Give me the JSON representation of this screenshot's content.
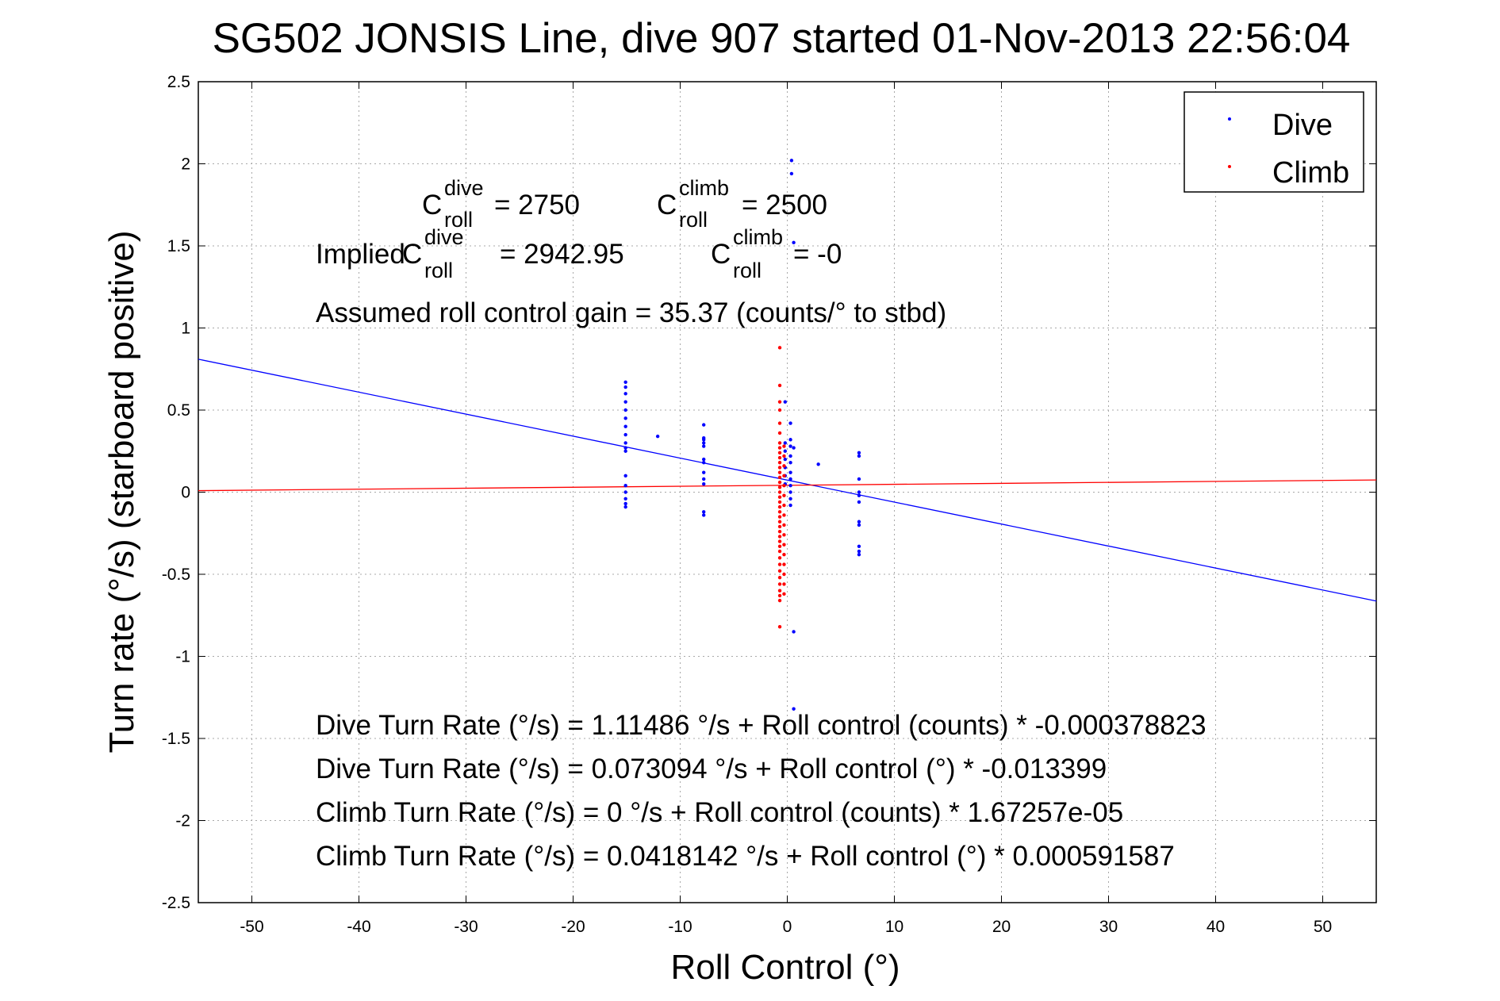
{
  "chart_data": {
    "type": "scatter",
    "title": "SG502 JONSIS Line, dive 907 started 01-Nov-2013 22:56:04",
    "xlabel": "Roll Control (°)",
    "ylabel": "Turn rate (°/s)  (starboard positive)",
    "xlim": [
      -55,
      55
    ],
    "ylim": [
      -2.5,
      2.5
    ],
    "xticks": [
      -50,
      -40,
      -30,
      -20,
      -10,
      0,
      10,
      20,
      30,
      40,
      50
    ],
    "yticks": [
      2.5,
      2,
      1.5,
      1,
      0.5,
      0,
      -0.5,
      -1,
      -1.5,
      -2,
      -2.5
    ],
    "xtick_labels": [
      "-50",
      "-40",
      "-30",
      "-20",
      "-10",
      "0",
      "10",
      "20",
      "30",
      "40",
      "50"
    ],
    "ytick_labels": [
      "2.5",
      "2",
      "1.5",
      "1",
      "0.5",
      "0",
      "-0.5",
      "-1",
      "-1.5",
      "-2",
      "-2.5"
    ],
    "grid": true,
    "legend_position": "top-right",
    "series": [
      {
        "name": "Dive",
        "color": "#0000ff",
        "points": [
          [
            -15.1,
            0.67
          ],
          [
            -15.1,
            0.64
          ],
          [
            -15.1,
            0.6
          ],
          [
            -15.1,
            0.55
          ],
          [
            -15.1,
            0.5
          ],
          [
            -15.1,
            0.45
          ],
          [
            -15.1,
            0.4
          ],
          [
            -15.1,
            0.35
          ],
          [
            -15.1,
            0.3
          ],
          [
            -15.1,
            0.27
          ],
          [
            -15.1,
            0.25
          ],
          [
            -15.1,
            0.1
          ],
          [
            -15.1,
            0.04
          ],
          [
            -15.1,
            0.0
          ],
          [
            -15.1,
            -0.04
          ],
          [
            -15.1,
            -0.07
          ],
          [
            -15.1,
            -0.09
          ],
          [
            -12.1,
            0.34
          ],
          [
            -7.8,
            0.41
          ],
          [
            -7.8,
            0.33
          ],
          [
            -7.8,
            0.32
          ],
          [
            -7.8,
            0.3
          ],
          [
            -7.8,
            0.28
          ],
          [
            -7.8,
            0.2
          ],
          [
            -7.8,
            0.18
          ],
          [
            -7.8,
            0.12
          ],
          [
            -7.8,
            0.08
          ],
          [
            -7.8,
            0.05
          ],
          [
            -7.8,
            -0.12
          ],
          [
            -7.8,
            -0.14
          ],
          [
            -0.2,
            0.55
          ],
          [
            -0.2,
            0.3
          ],
          [
            -0.2,
            0.25
          ],
          [
            -0.2,
            0.2
          ],
          [
            -0.2,
            0.15
          ],
          [
            -0.2,
            0.1
          ],
          [
            -0.2,
            0.05
          ],
          [
            0.3,
            0.42
          ],
          [
            0.3,
            0.32
          ],
          [
            0.3,
            0.28
          ],
          [
            0.3,
            0.22
          ],
          [
            0.3,
            0.18
          ],
          [
            0.3,
            0.12
          ],
          [
            0.3,
            0.08
          ],
          [
            0.3,
            0.04
          ],
          [
            0.3,
            0.0
          ],
          [
            0.3,
            -0.04
          ],
          [
            0.3,
            -0.08
          ],
          [
            0.4,
            2.02
          ],
          [
            0.4,
            1.94
          ],
          [
            0.6,
            1.52
          ],
          [
            0.6,
            0.27
          ],
          [
            0.6,
            -0.85
          ],
          [
            0.6,
            -1.32
          ],
          [
            2.9,
            0.17
          ],
          [
            6.7,
            0.24
          ],
          [
            6.7,
            0.22
          ],
          [
            6.7,
            0.08
          ],
          [
            6.7,
            0.0
          ],
          [
            6.7,
            -0.02
          ],
          [
            6.7,
            -0.06
          ],
          [
            6.7,
            -0.18
          ],
          [
            6.7,
            -0.2
          ],
          [
            6.7,
            -0.33
          ],
          [
            6.7,
            -0.36
          ],
          [
            6.7,
            -0.38
          ]
        ]
      },
      {
        "name": "Climb",
        "color": "#ff0000",
        "points": [
          [
            -0.7,
            0.88
          ],
          [
            -0.7,
            0.65
          ],
          [
            -0.7,
            0.55
          ],
          [
            -0.7,
            0.5
          ],
          [
            -0.7,
            0.42
          ],
          [
            -0.7,
            0.36
          ],
          [
            -0.7,
            0.3
          ],
          [
            -0.7,
            0.27
          ],
          [
            -0.7,
            0.24
          ],
          [
            -0.7,
            0.21
          ],
          [
            -0.7,
            0.18
          ],
          [
            -0.7,
            0.15
          ],
          [
            -0.7,
            0.12
          ],
          [
            -0.7,
            0.09
          ],
          [
            -0.7,
            0.06
          ],
          [
            -0.7,
            0.03
          ],
          [
            -0.7,
            0.0
          ],
          [
            -0.7,
            -0.03
          ],
          [
            -0.7,
            -0.06
          ],
          [
            -0.7,
            -0.09
          ],
          [
            -0.7,
            -0.12
          ],
          [
            -0.7,
            -0.15
          ],
          [
            -0.7,
            -0.18
          ],
          [
            -0.7,
            -0.21
          ],
          [
            -0.7,
            -0.24
          ],
          [
            -0.7,
            -0.27
          ],
          [
            -0.7,
            -0.3
          ],
          [
            -0.7,
            -0.33
          ],
          [
            -0.7,
            -0.36
          ],
          [
            -0.7,
            -0.4
          ],
          [
            -0.7,
            -0.44
          ],
          [
            -0.7,
            -0.48
          ],
          [
            -0.7,
            -0.52
          ],
          [
            -0.7,
            -0.56
          ],
          [
            -0.7,
            -0.6
          ],
          [
            -0.7,
            -0.63
          ],
          [
            -0.7,
            -0.66
          ],
          [
            -0.7,
            -0.82
          ],
          [
            -0.3,
            0.28
          ],
          [
            -0.3,
            0.22
          ],
          [
            -0.3,
            0.16
          ],
          [
            -0.3,
            0.1
          ],
          [
            -0.3,
            0.04
          ],
          [
            -0.3,
            -0.02
          ],
          [
            -0.3,
            -0.08
          ],
          [
            -0.3,
            -0.14
          ],
          [
            -0.3,
            -0.2
          ],
          [
            -0.3,
            -0.26
          ],
          [
            -0.3,
            -0.32
          ],
          [
            -0.3,
            -0.38
          ],
          [
            -0.3,
            -0.44
          ],
          [
            -0.3,
            -0.5
          ],
          [
            -0.3,
            -0.56
          ],
          [
            -0.3,
            -0.62
          ]
        ]
      }
    ],
    "fit_lines": [
      {
        "series": "Dive",
        "color": "#0000ff",
        "x": [
          -55,
          55
        ],
        "y": [
          0.81,
          -0.663
        ]
      },
      {
        "series": "Climb",
        "color": "#ff0000",
        "x": [
          -55,
          55
        ],
        "y": [
          0.0093,
          0.0744
        ]
      }
    ],
    "annotations": {
      "c_dive": {
        "base": "C",
        "sup": "dive",
        "sub": "roll",
        "value": " = 2750"
      },
      "c_climb": {
        "base": "C",
        "sup": "climb",
        "sub": "roll",
        "value": " = 2500"
      },
      "implied_prefix": "Implied ",
      "implied_c_dive": {
        "base": "C",
        "sup": "dive",
        "sub": "roll",
        "value": " = 2942.95"
      },
      "implied_c_climb": {
        "base": "C",
        "sup": "climb",
        "sub": "roll",
        "value": " = -0"
      },
      "gain": "Assumed roll control gain = 35.37 (counts/° to stbd)",
      "equations": [
        "Dive Turn Rate (°/s) = 1.11486 °/s + Roll control (counts) * -0.000378823",
        "Dive Turn Rate (°/s) = 0.073094 °/s + Roll control (°) * -0.013399",
        "Climb Turn Rate (°/s) = 0 °/s + Roll control (counts) * 1.67257e-05",
        "Climb Turn Rate (°/s) = 0.0418142 °/s + Roll control (°) * 0.000591587"
      ]
    }
  }
}
